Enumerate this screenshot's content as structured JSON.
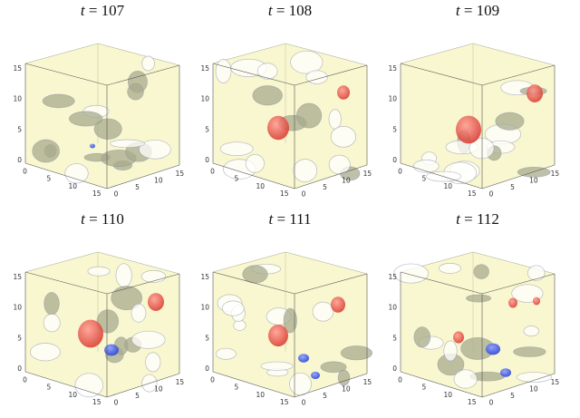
{
  "time_var": "t",
  "panels": [
    {
      "t": "107",
      "red_blobs": 0,
      "blue_blobs": 1
    },
    {
      "t": "108",
      "red_blobs": 2,
      "blue_blobs": 0
    },
    {
      "t": "109",
      "red_blobs": 2,
      "blue_blobs": 0
    },
    {
      "t": "110",
      "red_blobs": 2,
      "blue_blobs": 1
    },
    {
      "t": "111",
      "red_blobs": 2,
      "blue_blobs": 2
    },
    {
      "t": "112",
      "red_blobs": 3,
      "blue_blobs": 2
    }
  ],
  "axis_ticks": {
    "vertical": [
      "0",
      "5",
      "10",
      "15"
    ],
    "left_floor": [
      "0",
      "5",
      "10",
      "15"
    ],
    "right_floor": [
      "0",
      "5",
      "10",
      "15"
    ]
  },
  "colors": {
    "isosurface": "#f3f0a8",
    "isosurface_shadow": "#a8ab8c",
    "red_blob": "#d9382f",
    "blue_blob": "#2f45d9"
  }
}
